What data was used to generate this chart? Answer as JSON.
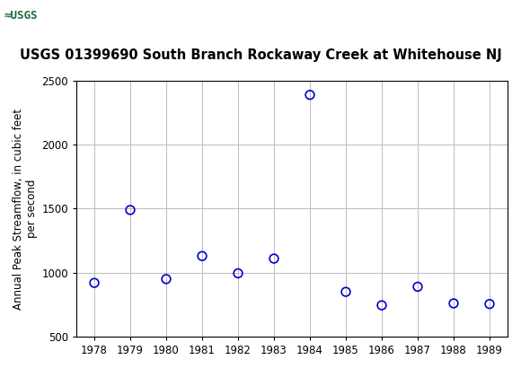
{
  "title": "USGS 01399690 South Branch Rockaway Creek at Whitehouse NJ",
  "ylabel": "Annual Peak Streamflow, in cubic feet\nper second",
  "xlabel": "",
  "years": [
    1978,
    1979,
    1980,
    1981,
    1982,
    1983,
    1984,
    1985,
    1986,
    1987,
    1988,
    1989
  ],
  "values": [
    920,
    1490,
    950,
    1130,
    995,
    1110,
    2390,
    850,
    745,
    890,
    760,
    755
  ],
  "xlim": [
    1977.5,
    1989.5
  ],
  "ylim": [
    500,
    2500
  ],
  "yticks": [
    500,
    1000,
    1500,
    2000,
    2500
  ],
  "xticks": [
    1978,
    1979,
    1980,
    1981,
    1982,
    1983,
    1984,
    1985,
    1986,
    1987,
    1988,
    1989
  ],
  "marker_color": "#0000CC",
  "marker_size": 7,
  "marker_style": "o",
  "marker_facecolor": "none",
  "grid_color": "#BBBBBB",
  "background_color": "#FFFFFF",
  "header_color": "#1B6B38",
  "header_text_color": "#FFFFFF",
  "title_fontsize": 10.5,
  "axis_label_fontsize": 8.5,
  "tick_fontsize": 8.5
}
